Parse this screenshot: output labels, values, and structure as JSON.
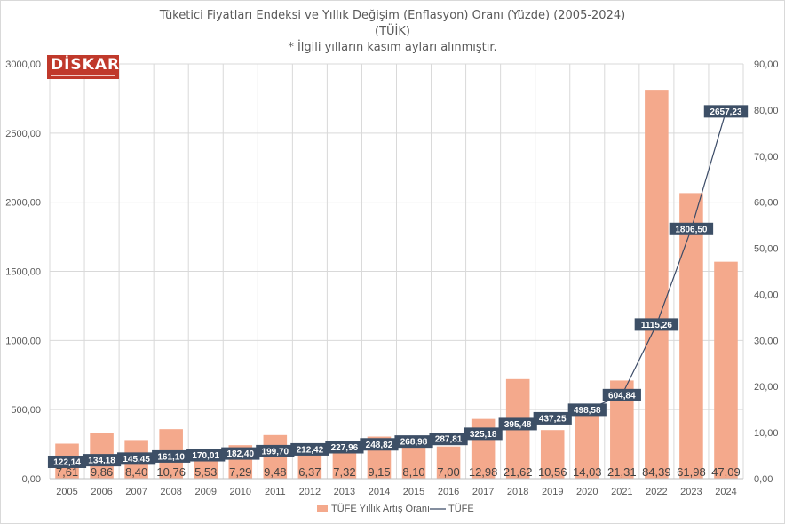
{
  "title": {
    "line1": "Tüketici Fiyatları Endeksi ve Yıllık Değişim (Enflasyon) Oranı (Yüzde) (2005-2024)",
    "line2": "(TÜİK)",
    "line3": "* İlgili yılların kasım ayları alınmıştır."
  },
  "logo": {
    "text": "DİSKAR"
  },
  "colors": {
    "bar": "#f4a98c",
    "line": "#3a4a66",
    "label_box": "#3d4f66",
    "grid": "#d9d9d9"
  },
  "chart_data": {
    "type": "bar",
    "categories": [
      "2005",
      "2006",
      "2007",
      "2008",
      "2009",
      "2010",
      "2011",
      "2012",
      "2013",
      "2014",
      "2015",
      "2016",
      "2017",
      "2018",
      "2019",
      "2020",
      "2021",
      "2022",
      "2023",
      "2024"
    ],
    "series": [
      {
        "name": "TÜFE Yıllık Artış Oranı",
        "type": "bar",
        "axis": "right",
        "values": [
          7.61,
          9.86,
          8.4,
          10.76,
          5.53,
          7.29,
          9.48,
          6.37,
          7.32,
          9.15,
          8.1,
          7.0,
          12.98,
          21.62,
          10.56,
          14.03,
          21.31,
          84.39,
          61.98,
          47.09
        ],
        "labels": [
          "7,61",
          "9,86",
          "8,40",
          "10,76",
          "5,53",
          "7,29",
          "9,48",
          "6,37",
          "7,32",
          "9,15",
          "8,10",
          "7,00",
          "12,98",
          "21,62",
          "10,56",
          "14,03",
          "21,31",
          "84,39",
          "61,98",
          "47,09"
        ]
      },
      {
        "name": "TÜFE",
        "type": "line",
        "axis": "left",
        "values": [
          122.14,
          134.18,
          145.45,
          161.1,
          170.01,
          182.4,
          199.7,
          212.42,
          227.96,
          248.82,
          268.98,
          287.81,
          325.18,
          395.48,
          437.25,
          498.58,
          604.84,
          1115.26,
          1806.5,
          2657.23
        ],
        "labels": [
          "122,14",
          "134,18",
          "145,45",
          "161,10",
          "170,01",
          "182,40",
          "199,70",
          "212,42",
          "227,96",
          "248,82",
          "268,98",
          "287,81",
          "325,18",
          "395,48",
          "437,25",
          "498,58",
          "604,84",
          "1115,26",
          "1806,50",
          "2657,23"
        ]
      }
    ],
    "left_axis": {
      "min": 0,
      "max": 3000,
      "ticks": [
        "0,00",
        "500,00",
        "1000,00",
        "1500,00",
        "2000,00",
        "2500,00",
        "3000,00"
      ]
    },
    "right_axis": {
      "min": 0,
      "max": 90,
      "ticks": [
        "0,00",
        "10,00",
        "20,00",
        "30,00",
        "40,00",
        "50,00",
        "60,00",
        "70,00",
        "80,00",
        "90,00"
      ]
    },
    "grid": true,
    "legend_position": "bottom"
  }
}
